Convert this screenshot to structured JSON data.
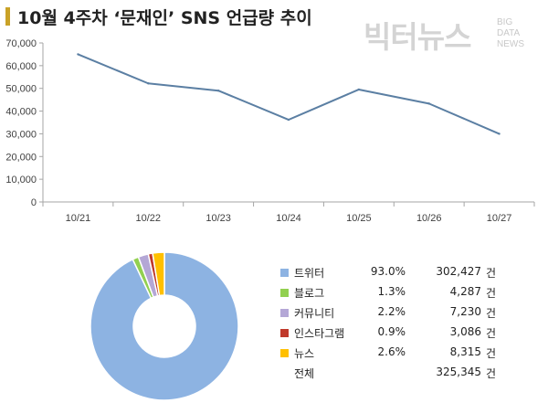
{
  "header": {
    "title": "10월 4주차 ‘문재인’ SNS 언급량 추이",
    "brand_ko": "빅터뉴스",
    "brand_en": [
      "BIG",
      "DATA",
      "NEWS"
    ]
  },
  "chart_data": [
    {
      "type": "line",
      "title": "",
      "categories": [
        "10/21",
        "10/22",
        "10/23",
        "10/24",
        "10/25",
        "10/26",
        "10/27"
      ],
      "series": [
        {
          "values": [
            65000,
            52200,
            49000,
            36200,
            49500,
            43300,
            30000
          ],
          "color": "#5b7fa3"
        }
      ],
      "ylim": [
        0,
        70000
      ],
      "yticks": [
        0,
        10000,
        20000,
        30000,
        40000,
        50000,
        60000,
        70000
      ],
      "ytick_labels": [
        "0",
        "10,000",
        "20,000",
        "30,000",
        "40,000",
        "50,000",
        "60,000",
        "70,000"
      ],
      "grid": false
    },
    {
      "type": "pie",
      "donut": true,
      "slices": [
        {
          "name": "트위터",
          "pct": "93.0%",
          "value": 302427,
          "count": "302,427",
          "unit": "건",
          "color": "#8db3e2"
        },
        {
          "name": "블로그",
          "pct": "1.3%",
          "value": 4287,
          "count": "4,287",
          "unit": "건",
          "color": "#92d050"
        },
        {
          "name": "커뮤니티",
          "pct": "2.2%",
          "value": 7230,
          "count": "7,230",
          "unit": "건",
          "color": "#b4a7d6"
        },
        {
          "name": "인스타그램",
          "pct": "0.9%",
          "value": 3086,
          "count": "3,086",
          "unit": "건",
          "color": "#c0392b"
        },
        {
          "name": "뉴스",
          "pct": "2.6%",
          "value": 8315,
          "count": "8,315",
          "unit": "건",
          "color": "#ffc000"
        }
      ],
      "total": {
        "name": "전체",
        "count": "325,345",
        "unit": "건"
      },
      "legend": "right"
    }
  ]
}
